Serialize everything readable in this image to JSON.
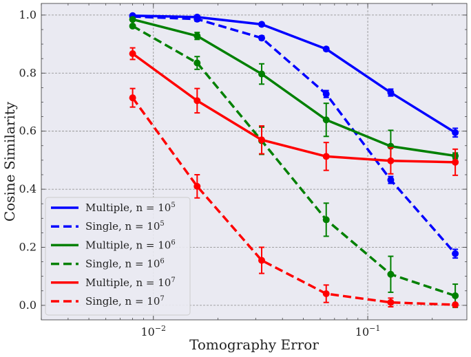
{
  "chart_data": {
    "type": "line",
    "xlabel": "Tomography Error",
    "ylabel": "Cosine Similarity",
    "xscale": "log",
    "xlim": [
      0.003,
      0.29
    ],
    "ylim": [
      -0.05,
      1.04
    ],
    "x": [
      0.008,
      0.016,
      0.032,
      0.064,
      0.128,
      0.256
    ],
    "x_ticks": [
      {
        "value": 0.01,
        "base": "10",
        "exp": "−2"
      },
      {
        "value": 0.1,
        "base": "10",
        "exp": "−1"
      }
    ],
    "y_ticks": [
      0.0,
      0.2,
      0.4,
      0.6,
      0.8,
      1.0
    ],
    "y_tick_labels": [
      "0.0",
      "0.2",
      "0.4",
      "0.6",
      "0.8",
      "1.0"
    ],
    "grid": true,
    "legend_position": "lower-left",
    "series": [
      {
        "label": "Multiple, n = ",
        "exp": "5",
        "color": "#0000ff",
        "dash": false,
        "values": [
          0.998,
          0.993,
          0.968,
          0.883,
          0.733,
          0.595
        ],
        "errors": [
          0.004,
          0.005,
          0.006,
          0.006,
          0.012,
          0.015
        ]
      },
      {
        "label": "Single, n = ",
        "exp": "5",
        "color": "#0000ff",
        "dash": true,
        "values": [
          0.995,
          0.986,
          0.921,
          0.728,
          0.432,
          0.178
        ],
        "errors": [
          0.004,
          0.007,
          0.007,
          0.012,
          0.012,
          0.015
        ]
      },
      {
        "label": "Multiple, n = ",
        "exp": "6",
        "color": "#008000",
        "dash": false,
        "values": [
          0.985,
          0.928,
          0.797,
          0.639,
          0.548,
          0.515
        ],
        "errors": [
          0.004,
          0.012,
          0.035,
          0.057,
          0.055,
          0.01
        ]
      },
      {
        "label": "Single, n = ",
        "exp": "6",
        "color": "#008000",
        "dash": true,
        "values": [
          0.962,
          0.835,
          0.567,
          0.295,
          0.107,
          0.033
        ],
        "errors": [
          0.004,
          0.022,
          0.047,
          0.057,
          0.062,
          0.04
        ]
      },
      {
        "label": "Multiple, n = ",
        "exp": "7",
        "color": "#ff0000",
        "dash": false,
        "values": [
          0.867,
          0.705,
          0.57,
          0.513,
          0.498,
          0.493
        ],
        "errors": [
          0.02,
          0.042,
          0.048,
          0.048,
          0.045,
          0.045
        ]
      },
      {
        "label": "Single, n = ",
        "exp": "7",
        "color": "#ff0000",
        "dash": true,
        "values": [
          0.715,
          0.41,
          0.155,
          0.04,
          0.01,
          0.002
        ],
        "errors": [
          0.032,
          0.04,
          0.045,
          0.03,
          0.015,
          0.004
        ]
      }
    ]
  }
}
